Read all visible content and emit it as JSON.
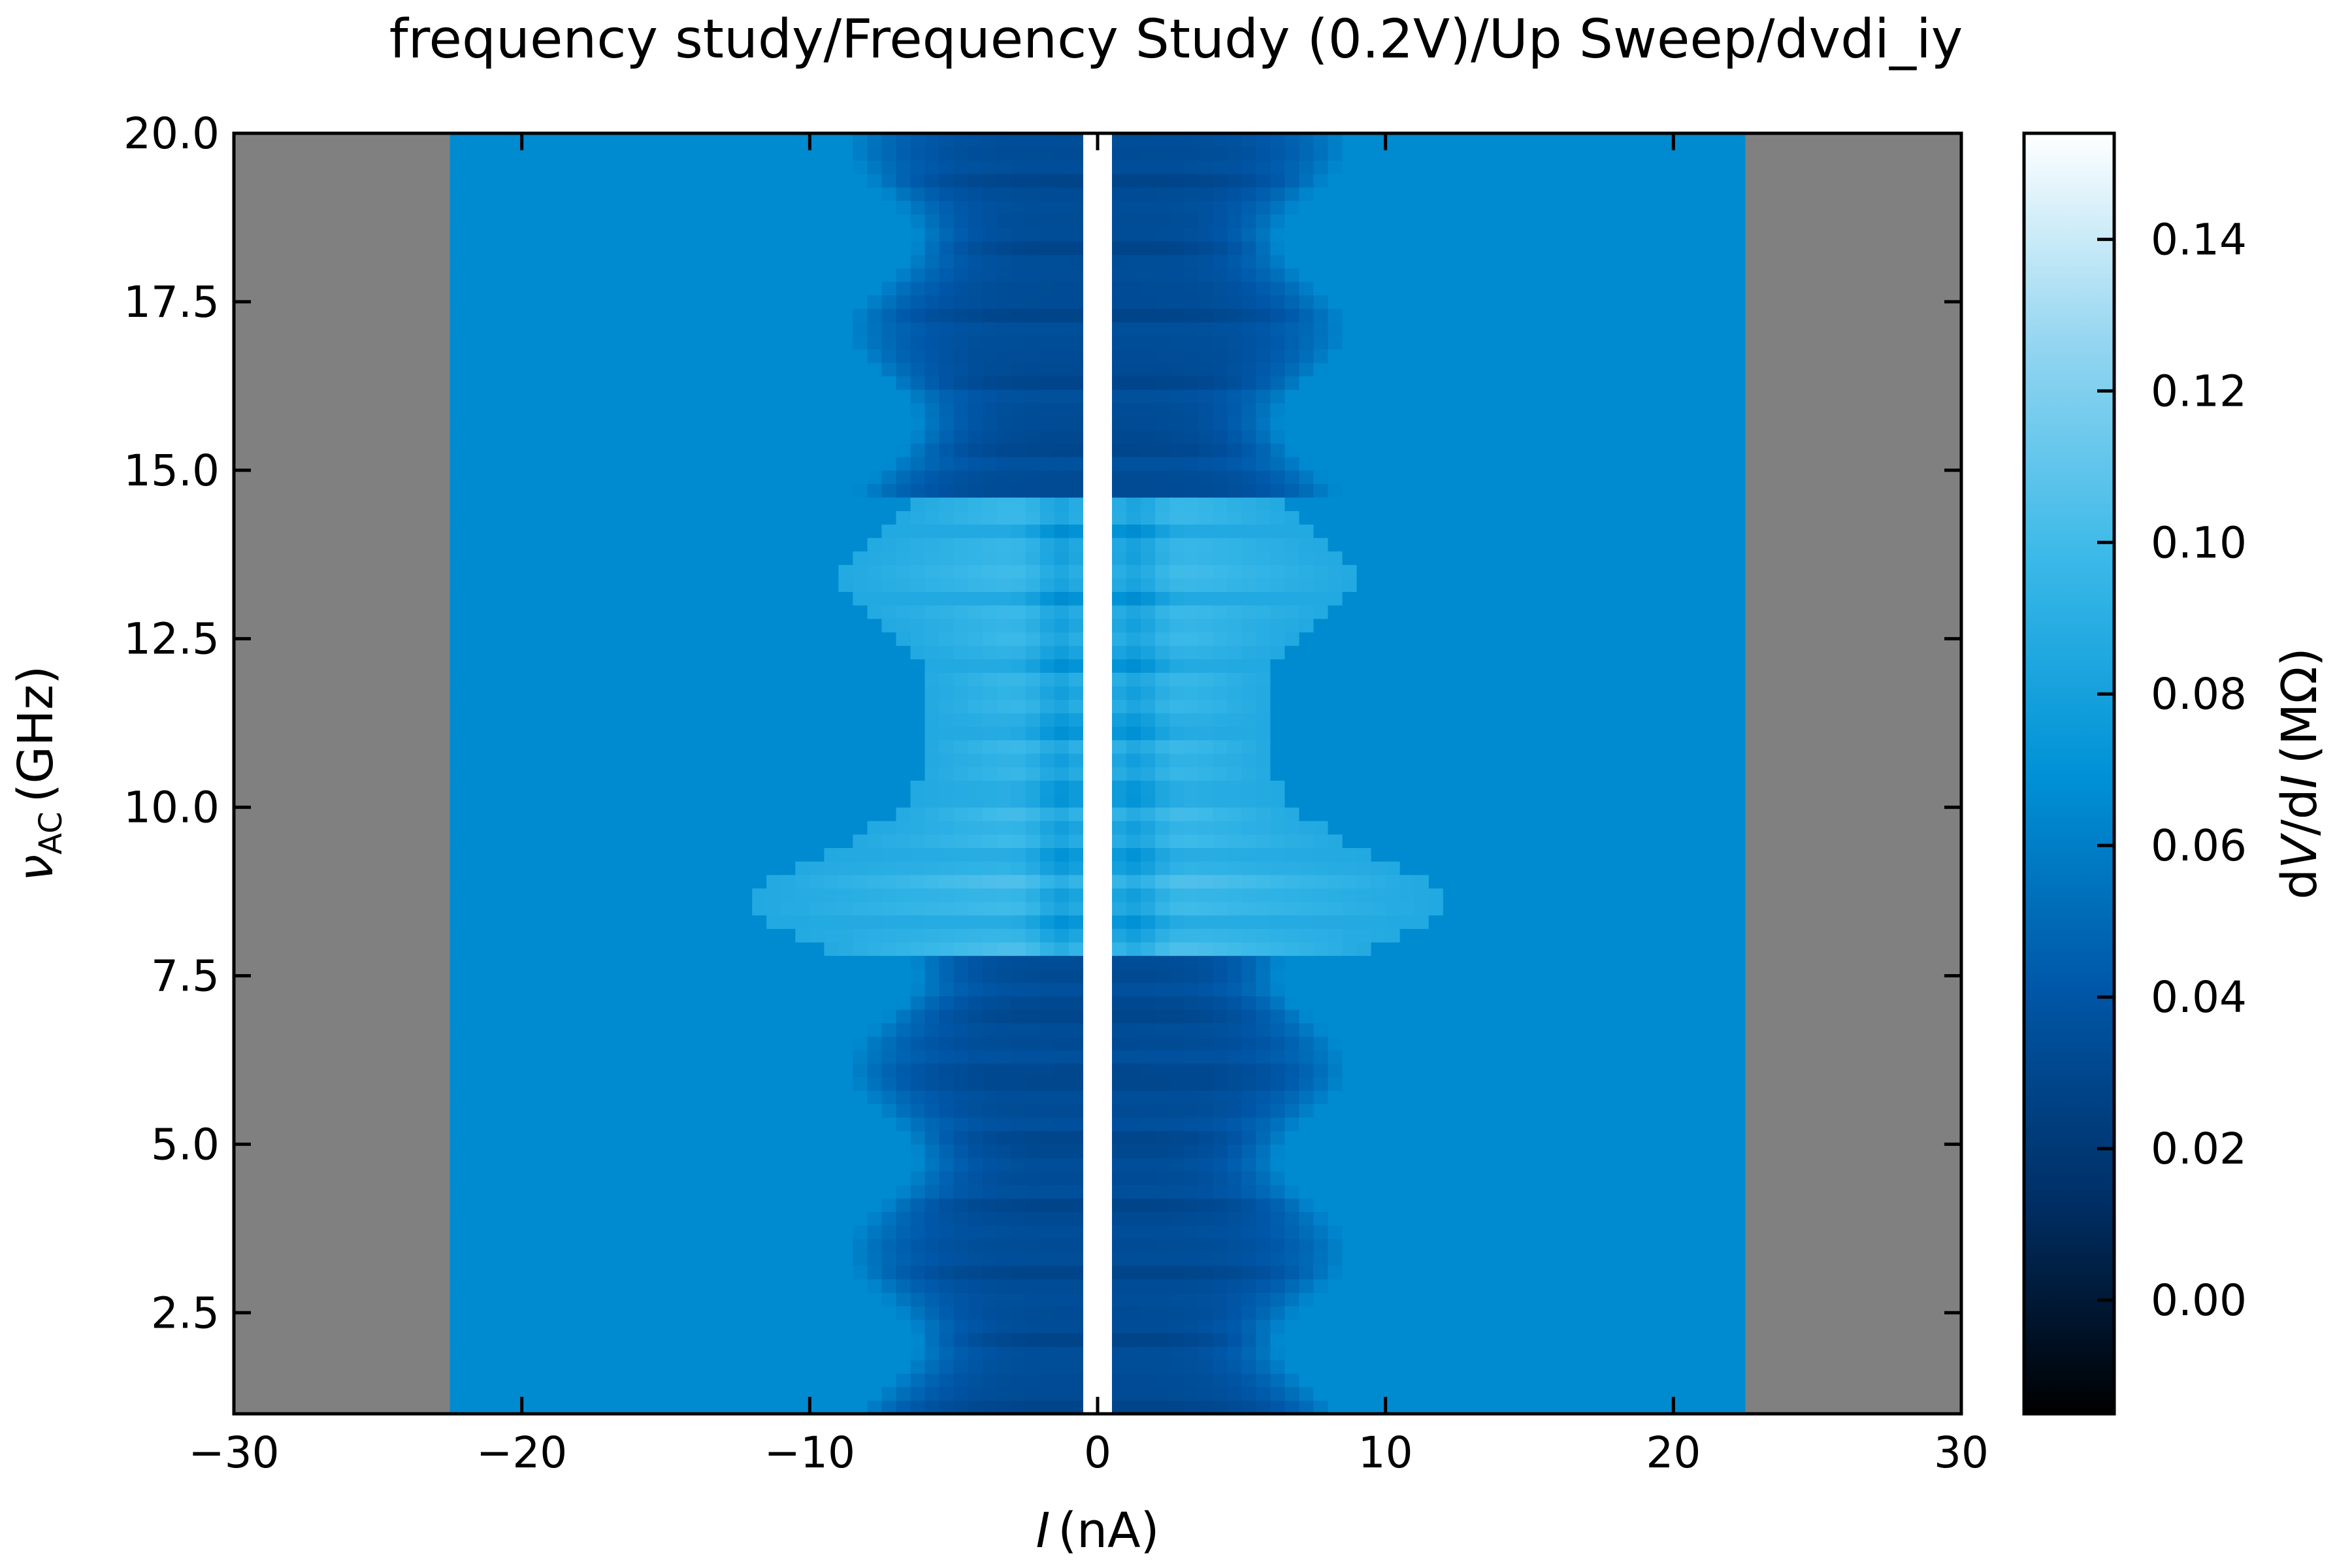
{
  "chart_data": {
    "type": "heatmap",
    "title": "frequency study/Frequency Study (0.2V)/Up Sweep/dvdi_iy",
    "xlabel": {
      "var": "I",
      "unit": "(nA)"
    },
    "ylabel": {
      "var": "ν",
      "sub": "AC",
      "unit": "(GHz)"
    },
    "colorbar_label": {
      "d1": "d",
      "v": "V",
      "slash": "/d",
      "i": "I",
      "unit": "(MΩ)"
    },
    "xlim": [
      -30,
      30
    ],
    "ylim": [
      1,
      20
    ],
    "x_ticks": [
      -30,
      -20,
      -10,
      0,
      10,
      20,
      30
    ],
    "x_tick_labels": [
      "−30",
      "−20",
      "−10",
      "0",
      "10",
      "20",
      "30"
    ],
    "y_ticks": [
      2.5,
      5.0,
      7.5,
      10.0,
      12.5,
      15.0,
      17.5,
      20.0
    ],
    "y_tick_labels": [
      "2.5",
      "5.0",
      "7.5",
      "10.0",
      "12.5",
      "15.0",
      "17.5",
      "20.0"
    ],
    "colorbar_range": [
      -0.015,
      0.154
    ],
    "colorbar_ticks": [
      0.0,
      0.02,
      0.04,
      0.06,
      0.08,
      0.1,
      0.12,
      0.14
    ],
    "colorbar_tick_labels": [
      "0.00",
      "0.02",
      "0.04",
      "0.06",
      "0.08",
      "0.10",
      "0.12",
      "0.14"
    ],
    "colormap": [
      "#000000",
      "#002f66",
      "#0057a8",
      "#0092d6",
      "#3ab9e8",
      "#92d5f0",
      "#ffffff"
    ],
    "nan_color": "#808080",
    "data_x_range": [
      -22.7,
      22.7
    ],
    "background_value": 0.066,
    "dip_half_width_nA": 7.5,
    "dip_value": 0.028,
    "supercurrent_core_nA": 0.7,
    "core_value": 0.154,
    "shapiro_frequency_band_GHz": [
      7.8,
      14.5
    ],
    "grid": false,
    "legend": "none"
  }
}
